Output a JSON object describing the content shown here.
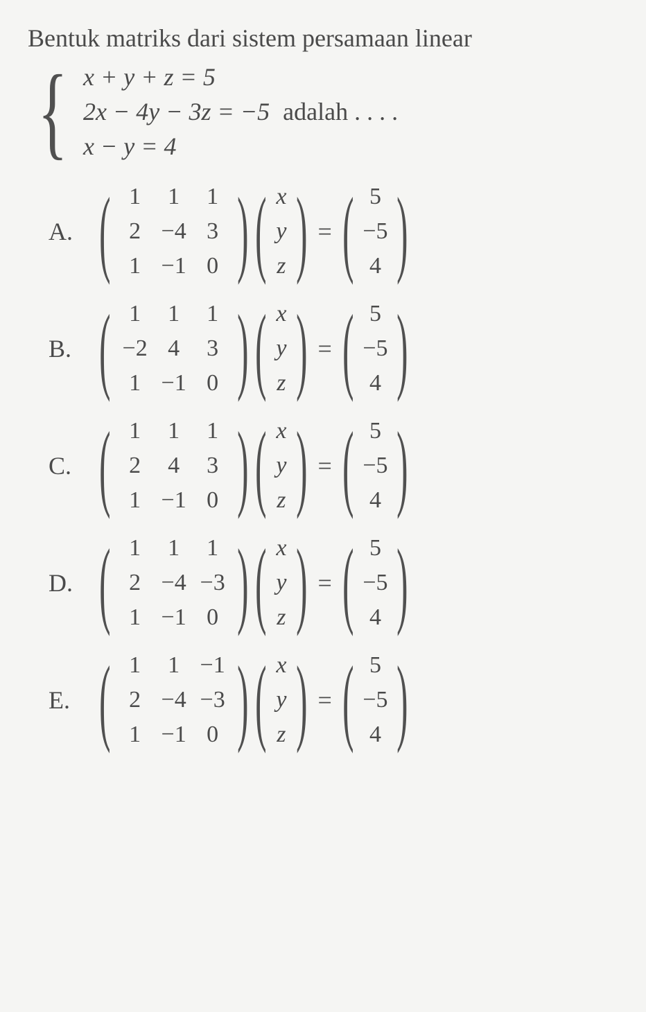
{
  "colors": {
    "background": "#f5f5f3",
    "text": "#4a4a4a",
    "math": "#505050"
  },
  "typography": {
    "body_font": "Palatino, Book Antiqua, Georgia, serif",
    "question_size": 36,
    "matrix_cell_size": 34
  },
  "question": {
    "intro": "Bentuk matriks dari sistem persamaan linear",
    "system": {
      "eq1": "x + y + z = 5",
      "eq2_left": "2x − 4y − 3z = −5",
      "eq2_suffix": " adalah . . . .",
      "eq3": "x − y = 4"
    }
  },
  "variables": [
    "x",
    "y",
    "z"
  ],
  "rhs": [
    "5",
    "−5",
    "4"
  ],
  "equals": "=",
  "options": [
    {
      "label": "A.",
      "matrix": [
        [
          "1",
          "1",
          "1"
        ],
        [
          "2",
          "−4",
          "3"
        ],
        [
          "1",
          "−1",
          "0"
        ]
      ]
    },
    {
      "label": "B.",
      "matrix": [
        [
          "1",
          "1",
          "1"
        ],
        [
          "−2",
          "4",
          "3"
        ],
        [
          "1",
          "−1",
          "0"
        ]
      ]
    },
    {
      "label": "C.",
      "matrix": [
        [
          "1",
          "1",
          "1"
        ],
        [
          "2",
          "4",
          "3"
        ],
        [
          "1",
          "−1",
          "0"
        ]
      ]
    },
    {
      "label": "D.",
      "matrix": [
        [
          "1",
          "1",
          "1"
        ],
        [
          "2",
          "−4",
          "−3"
        ],
        [
          "1",
          "−1",
          "0"
        ]
      ]
    },
    {
      "label": "E.",
      "matrix": [
        [
          "1",
          "1",
          "−1"
        ],
        [
          "2",
          "−4",
          "−3"
        ],
        [
          "1",
          "−1",
          "0"
        ]
      ]
    }
  ]
}
